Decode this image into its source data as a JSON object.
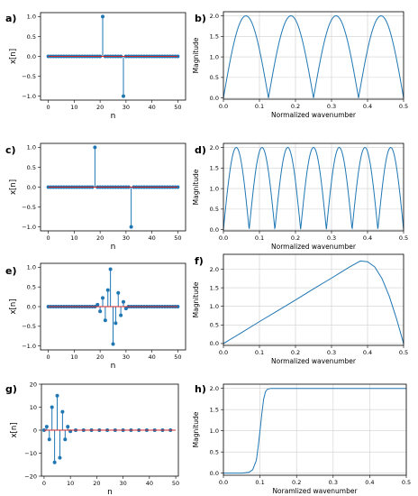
{
  "chart_data": [
    {
      "id": "a",
      "panel_label": "a)",
      "type": "stem",
      "xlabel": "n",
      "ylabel": "x[n]",
      "xlim": [
        -3,
        53
      ],
      "ylim": [
        -1.1,
        1.1
      ],
      "xticks": [
        0,
        10,
        20,
        30,
        40,
        50
      ],
      "xtick_labels": [
        "0",
        "10",
        "20",
        "30",
        "40",
        "50"
      ],
      "yticks": [
        -1.0,
        -0.5,
        0.0,
        0.5,
        1.0
      ],
      "ytick_labels": [
        "−1.0",
        "−0.5",
        "0.0",
        "0.5",
        "1.0"
      ],
      "grid": false,
      "n_points": 51,
      "impulses": [
        {
          "n": 21,
          "value": 1.0
        },
        {
          "n": 29,
          "value": -1.0
        }
      ]
    },
    {
      "id": "b",
      "panel_label": "b)",
      "type": "line",
      "xlabel": "Normalized wavenumber",
      "ylabel": "Magnitude",
      "xlim": [
        0,
        0.5
      ],
      "ylim": [
        -0.03,
        2.1
      ],
      "xticks": [
        0.0,
        0.1,
        0.2,
        0.3,
        0.4,
        0.5
      ],
      "xtick_labels": [
        "0.0",
        "0.1",
        "0.2",
        "0.3",
        "0.4",
        "0.5"
      ],
      "yticks": [
        0.0,
        0.5,
        1.0,
        1.5,
        2.0
      ],
      "ytick_labels": [
        "0.0",
        "0.5",
        "1.0",
        "1.5",
        "2.0"
      ],
      "grid": true,
      "function": "two_impulse",
      "delay": 8
    },
    {
      "id": "c",
      "panel_label": "c)",
      "type": "stem",
      "xlabel": "n",
      "ylabel": "x[n]",
      "xlim": [
        -3,
        53
      ],
      "ylim": [
        -1.1,
        1.1
      ],
      "xticks": [
        0,
        10,
        20,
        30,
        40,
        50
      ],
      "xtick_labels": [
        "0",
        "10",
        "20",
        "30",
        "40",
        "50"
      ],
      "yticks": [
        -1.0,
        -0.5,
        0.0,
        0.5,
        1.0
      ],
      "ytick_labels": [
        "−1.0",
        "−0.5",
        "0.0",
        "0.5",
        "1.0"
      ],
      "grid": false,
      "n_points": 51,
      "impulses": [
        {
          "n": 18,
          "value": 1.0
        },
        {
          "n": 32,
          "value": -1.0
        }
      ]
    },
    {
      "id": "d",
      "panel_label": "d)",
      "type": "line",
      "xlabel": "Normalized wavenumber",
      "ylabel": "Magnitude",
      "xlim": [
        0,
        0.5
      ],
      "ylim": [
        -0.03,
        2.1
      ],
      "xticks": [
        0.0,
        0.1,
        0.2,
        0.3,
        0.4,
        0.5
      ],
      "xtick_labels": [
        "0.0",
        "0.1",
        "0.2",
        "0.3",
        "0.4",
        "0.5"
      ],
      "yticks": [
        0.0,
        0.5,
        1.0,
        1.5,
        2.0
      ],
      "ytick_labels": [
        "0.0",
        "0.5",
        "1.0",
        "1.5",
        "2.0"
      ],
      "grid": true,
      "function": "two_impulse",
      "delay": 14
    },
    {
      "id": "e",
      "panel_label": "e)",
      "type": "stem",
      "xlabel": "n",
      "ylabel": "x[n]",
      "xlim": [
        -3,
        53
      ],
      "ylim": [
        -1.1,
        1.1
      ],
      "xticks": [
        0,
        10,
        20,
        30,
        40,
        50
      ],
      "xtick_labels": [
        "0",
        "10",
        "20",
        "30",
        "40",
        "50"
      ],
      "yticks": [
        -1.0,
        -0.5,
        0.0,
        0.5,
        1.0
      ],
      "ytick_labels": [
        "−1.0",
        "−0.5",
        "0.0",
        "0.5",
        "1.0"
      ],
      "grid": false,
      "n_points": 51,
      "impulses": [
        {
          "n": 19,
          "value": 0.05
        },
        {
          "n": 20,
          "value": -0.12
        },
        {
          "n": 21,
          "value": 0.22
        },
        {
          "n": 22,
          "value": -0.35
        },
        {
          "n": 23,
          "value": 0.42
        },
        {
          "n": 24,
          "value": 0.95
        },
        {
          "n": 25,
          "value": -0.95
        },
        {
          "n": 26,
          "value": -0.42
        },
        {
          "n": 27,
          "value": 0.35
        },
        {
          "n": 28,
          "value": -0.22
        },
        {
          "n": 29,
          "value": 0.12
        },
        {
          "n": 30,
          "value": -0.05
        }
      ]
    },
    {
      "id": "f",
      "panel_label": "f)",
      "type": "line",
      "xlabel": "Normalized wavenumber",
      "ylabel": "Magnitude",
      "xlim": [
        0,
        0.5
      ],
      "ylim": [
        -0.05,
        2.4
      ],
      "xticks": [
        0.0,
        0.1,
        0.2,
        0.3,
        0.4,
        0.5
      ],
      "xtick_labels": [
        "0.0",
        "0.1",
        "0.2",
        "0.3",
        "0.4",
        "0.5"
      ],
      "yticks": [
        0.0,
        0.5,
        1.0,
        1.5,
        2.0
      ],
      "ytick_labels": [
        "0.0",
        "0.5",
        "1.0",
        "1.5",
        "2.0"
      ],
      "grid": true,
      "points": [
        [
          0.0,
          0.0
        ],
        [
          0.05,
          0.29
        ],
        [
          0.1,
          0.59
        ],
        [
          0.15,
          0.88
        ],
        [
          0.2,
          1.17
        ],
        [
          0.25,
          1.47
        ],
        [
          0.3,
          1.76
        ],
        [
          0.35,
          2.06
        ],
        [
          0.38,
          2.22
        ],
        [
          0.4,
          2.2
        ],
        [
          0.42,
          2.06
        ],
        [
          0.44,
          1.75
        ],
        [
          0.46,
          1.28
        ],
        [
          0.48,
          0.68
        ],
        [
          0.5,
          0.0
        ]
      ]
    },
    {
      "id": "g",
      "panel_label": "g)",
      "type": "stem",
      "xlabel": "n",
      "ylabel": "x[n]",
      "xlim": [
        -1,
        51
      ],
      "ylim": [
        -20,
        20
      ],
      "xticks": [
        0,
        10,
        20,
        30,
        40,
        50
      ],
      "xtick_labels": [
        "0",
        "10",
        "20",
        "30",
        "40",
        "50"
      ],
      "yticks": [
        -20,
        -10,
        0,
        10,
        20
      ],
      "ytick_labels": [
        "−20",
        "−10",
        "0",
        "10",
        "20"
      ],
      "grid": false,
      "n_points": 51,
      "marker_stride": 3,
      "impulses": [
        {
          "n": 1,
          "value": 1.5
        },
        {
          "n": 2,
          "value": -4
        },
        {
          "n": 3,
          "value": 10
        },
        {
          "n": 4,
          "value": -14
        },
        {
          "n": 5,
          "value": 15
        },
        {
          "n": 6,
          "value": -12
        },
        {
          "n": 7,
          "value": 8
        },
        {
          "n": 8,
          "value": -4
        },
        {
          "n": 9,
          "value": 1.5
        },
        {
          "n": 10,
          "value": -0.5
        }
      ]
    },
    {
      "id": "h",
      "panel_label": "h)",
      "type": "line",
      "xlabel": "Noramlized wavenumber",
      "ylabel": "Magnitude",
      "xlim": [
        0,
        0.5
      ],
      "ylim": [
        -0.05,
        2.1
      ],
      "xticks": [
        0.0,
        0.1,
        0.2,
        0.3,
        0.4,
        0.5
      ],
      "xtick_labels": [
        "0.0",
        "0.1",
        "0.2",
        "0.3",
        "0.4",
        "0.5"
      ],
      "yticks": [
        0.0,
        0.5,
        1.0,
        1.5,
        2.0
      ],
      "ytick_labels": [
        "0.0",
        "0.5",
        "1.0",
        "1.5",
        "2.0"
      ],
      "grid": true,
      "points": [
        [
          0.0,
          0.0
        ],
        [
          0.05,
          0.0
        ],
        [
          0.07,
          0.02
        ],
        [
          0.08,
          0.08
        ],
        [
          0.09,
          0.3
        ],
        [
          0.095,
          0.62
        ],
        [
          0.1,
          1.0
        ],
        [
          0.105,
          1.4
        ],
        [
          0.11,
          1.75
        ],
        [
          0.115,
          1.92
        ],
        [
          0.12,
          1.98
        ],
        [
          0.13,
          2.0
        ],
        [
          0.2,
          2.0
        ],
        [
          0.3,
          2.0
        ],
        [
          0.4,
          2.0
        ],
        [
          0.5,
          2.0
        ]
      ]
    }
  ]
}
